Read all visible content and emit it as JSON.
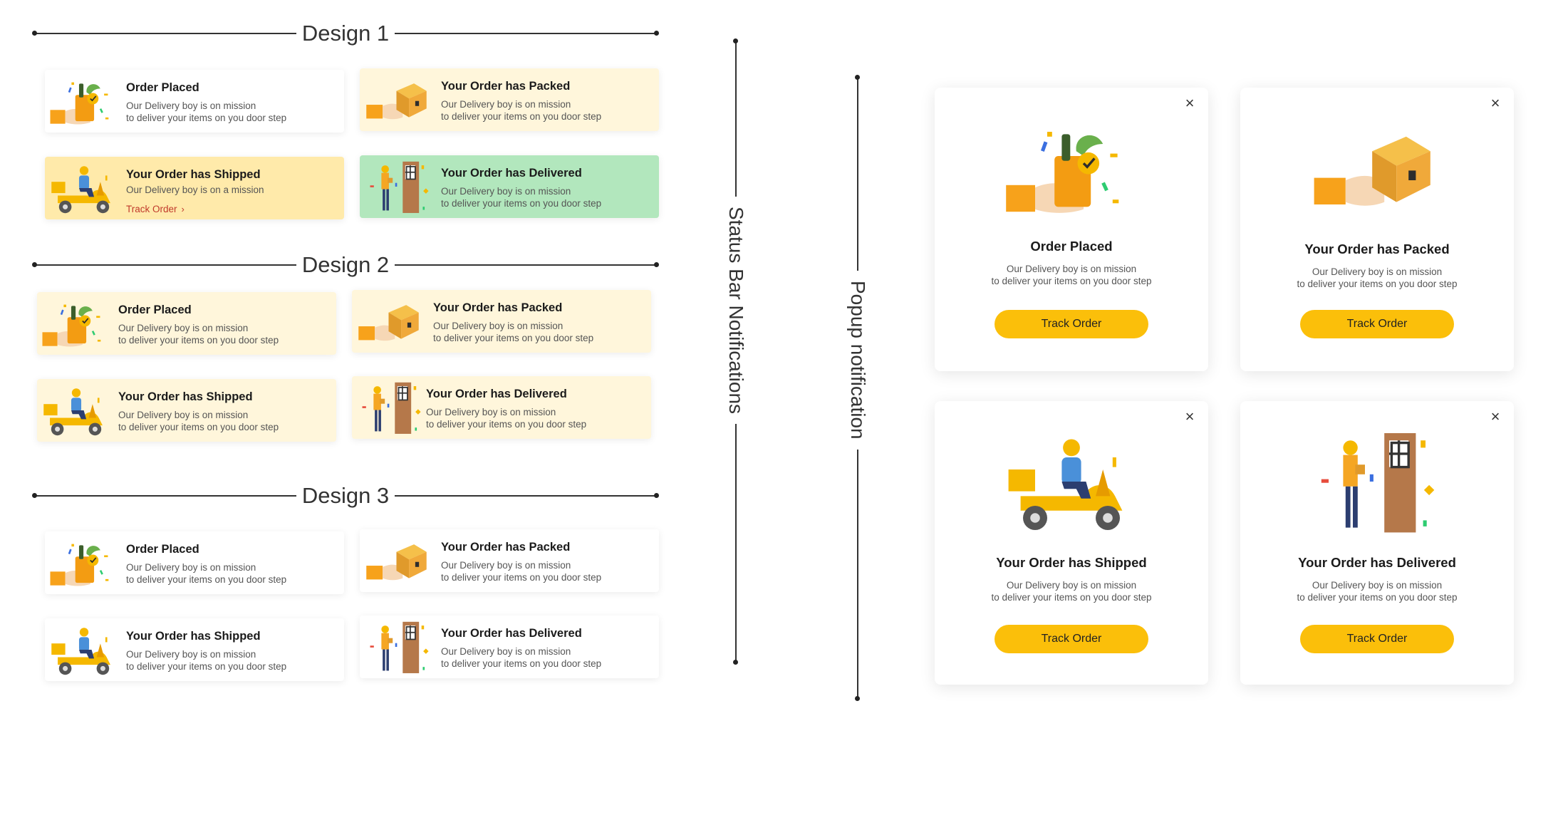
{
  "sections": {
    "design1": "Design 1",
    "design2": "Design 2",
    "design3": "Design 3"
  },
  "rails": {
    "status_bar": "Status Bar Notifications",
    "popup": "Popup notification"
  },
  "colors": {
    "accent_yellow": "#fbbf0a",
    "cream": "#fff6db",
    "soft_yellow": "#ffeaaa",
    "green": "#b2e7bd",
    "link_red": "#c0392b"
  },
  "design1": {
    "placed": {
      "title": "Order Placed",
      "line1": "Our Delivery boy is on mission",
      "line2": "to deliver your items on you door step"
    },
    "packed": {
      "title": "Your Order has Packed",
      "line1": "Our Delivery boy is on mission",
      "line2": "to deliver your items on you door step"
    },
    "shipped": {
      "title": "Your Order has Shipped",
      "line1": "Our Delivery boy is on a mission",
      "link": "Track Order"
    },
    "delivered": {
      "title": "Your Order has Delivered",
      "line1": "Our Delivery boy is on mission",
      "line2": "to deliver your items on you door step"
    }
  },
  "design2": {
    "placed": {
      "title": "Order Placed",
      "line1": "Our Delivery boy is on mission",
      "line2": "to deliver your items on you door step"
    },
    "packed": {
      "title": "Your Order has Packed",
      "line1": "Our Delivery boy is on mission",
      "line2": "to deliver your items on you door step"
    },
    "shipped": {
      "title": "Your Order has Shipped",
      "line1": "Our Delivery boy is on mission",
      "line2": "to deliver your items on you door step"
    },
    "delivered": {
      "title": "Your Order has Delivered",
      "line1": "Our Delivery boy is on mission",
      "line2": "to deliver your items on you door step"
    }
  },
  "design3": {
    "placed": {
      "title": "Order Placed",
      "line1": "Our Delivery boy is on mission",
      "line2": "to deliver your items on you door step"
    },
    "packed": {
      "title": "Your Order has Packed",
      "line1": "Our Delivery boy is on mission",
      "line2": "to deliver your items on you door step"
    },
    "shipped": {
      "title": "Your Order has Shipped",
      "line1": "Our Delivery boy is on mission",
      "line2": "to deliver your items on you door step"
    },
    "delivered": {
      "title": "Your Order has Delivered",
      "line1": "Our Delivery boy is on mission",
      "line2": "to deliver your items on you door step"
    }
  },
  "popups": {
    "placed": {
      "title": "Order Placed",
      "line1": "Our Delivery boy is on mission",
      "line2": "to deliver your items on you door step",
      "button": "Track Order",
      "close": "×"
    },
    "packed": {
      "title": "Your Order has Packed",
      "line1": "Our Delivery boy is on mission",
      "line2": "to deliver your items on you door step",
      "button": "Track Order",
      "close": "×"
    },
    "shipped": {
      "title": "Your Order has Shipped",
      "line1": "Our Delivery boy is on mission",
      "line2": "to deliver your items on you door step",
      "button": "Track Order",
      "close": "×"
    },
    "delivered": {
      "title": "Your Order has Delivered",
      "line1": "Our Delivery boy is on mission",
      "line2": "to deliver your items on you door step",
      "button": "Track Order",
      "close": "×"
    }
  },
  "icons": {
    "placed": "grocery-bag-hand-icon",
    "packed": "parcel-box-hand-icon",
    "shipped": "delivery-scooter-icon",
    "delivered": "delivery-door-icon",
    "chevron": "chevron-right-icon",
    "close": "close-icon"
  }
}
